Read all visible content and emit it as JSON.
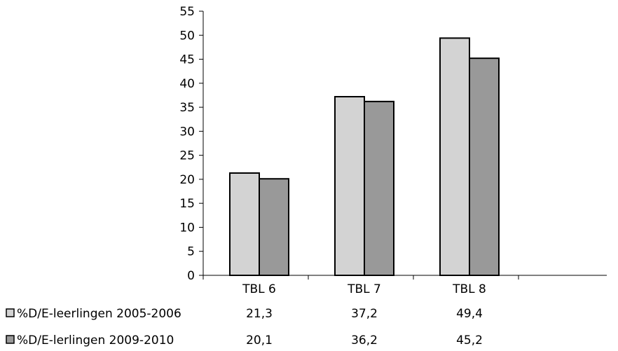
{
  "chart_data": {
    "type": "bar",
    "categories": [
      "TBL 6",
      "TBL 7",
      "TBL 8"
    ],
    "series": [
      {
        "name": "%D/E-leerlingen 2005-2006",
        "values": [
          21.3,
          37.2,
          49.4
        ],
        "value_labels": [
          "21,3",
          "37,2",
          "49,4"
        ],
        "color": "#d3d3d3"
      },
      {
        "name": "%D/E-lerlingen 2009-2010",
        "values": [
          20.1,
          36.2,
          45.2
        ],
        "value_labels": [
          "20,1",
          "36,2",
          "45,2"
        ],
        "color": "#999999"
      }
    ],
    "ylim": [
      0,
      55
    ],
    "yticks": [
      0,
      5,
      10,
      15,
      20,
      25,
      30,
      35,
      40,
      45,
      50,
      55
    ],
    "title": "",
    "xlabel": "",
    "ylabel": "",
    "grid": false,
    "legend": "data-table-below"
  }
}
